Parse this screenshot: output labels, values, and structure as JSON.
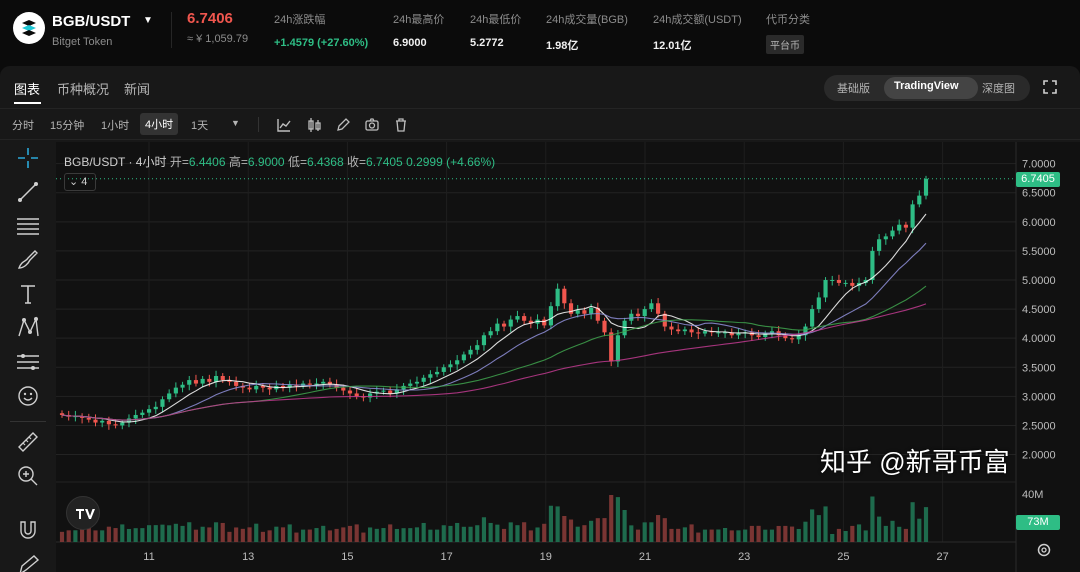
{
  "header": {
    "pair": "BGB/USDT",
    "coin_name": "Bitget Token",
    "last_price": "6.7406",
    "fiat_price": "≈ ¥ 1,059.79",
    "stats": [
      {
        "label": "24h涨跌幅",
        "value": "+1.4579 (+27.60%)",
        "up": true
      },
      {
        "label": "24h最高价",
        "value": "6.9000"
      },
      {
        "label": "24h最低价",
        "value": "5.2772"
      },
      {
        "label": "24h成交量(BGB)",
        "value": "1.98亿"
      },
      {
        "label": "24h成交额(USDT)",
        "value": "12.01亿"
      },
      {
        "label": "代币分类",
        "tag": "平台币"
      }
    ]
  },
  "tabs": {
    "chart": "图表",
    "overview": "币种概况",
    "news": "新闻"
  },
  "views": {
    "basic": "基础版",
    "tradingview": "TradingView",
    "depth": "深度图"
  },
  "timeframes": {
    "time": "分时",
    "m15": "15分钟",
    "h1": "1小时",
    "h4": "4小时",
    "d1": "1天",
    "caret": "▼"
  },
  "legend": {
    "symbol": "BGB/USDT · 4小时",
    "open_lbl": "开=",
    "open": "6.4406",
    "high_lbl": "高=",
    "high": "6.9000",
    "low_lbl": "低=",
    "low": "6.4368",
    "close_lbl": "收=",
    "close": "6.7405",
    "change": "0.2999 (+4.66%)",
    "indicator_count": "4"
  },
  "current_price_label": "6.7405",
  "volume_label": "73M",
  "watermark": "知乎 @新哥币富",
  "colors": {
    "up": "#2ebd85",
    "down": "#f0564e",
    "ma7": "#ffffff",
    "ma14": "#8f8fd9",
    "ma30": "#3fa34d",
    "ma60": "#c03b8f"
  },
  "chart_data": {
    "type": "candlestick",
    "symbol": "BGB/USDT",
    "interval": "4小时",
    "y_ticks": [
      "7.0000",
      "6.5000",
      "6.0000",
      "5.5000",
      "5.0000",
      "4.5000",
      "4.0000",
      "3.5000",
      "3.0000",
      "2.5000",
      "2.0000"
    ],
    "ylim": [
      1.7,
      7.2
    ],
    "x_ticks": [
      "11",
      "13",
      "15",
      "17",
      "19",
      "21",
      "23",
      "25",
      "27"
    ],
    "volume_ticks": [
      "40M"
    ],
    "closes": [
      2.68,
      2.65,
      2.66,
      2.63,
      2.6,
      2.55,
      2.58,
      2.52,
      2.5,
      2.55,
      2.62,
      2.68,
      2.72,
      2.78,
      2.82,
      2.95,
      3.05,
      3.15,
      3.2,
      3.28,
      3.22,
      3.3,
      3.25,
      3.35,
      3.28,
      3.25,
      3.18,
      3.15,
      3.12,
      3.18,
      3.15,
      3.12,
      3.18,
      3.15,
      3.2,
      3.18,
      3.22,
      3.2,
      3.22,
      3.25,
      3.2,
      3.15,
      3.1,
      3.05,
      3.0,
      2.98,
      3.05,
      3.08,
      3.1,
      3.05,
      3.12,
      3.18,
      3.22,
      3.25,
      3.32,
      3.38,
      3.42,
      3.5,
      3.55,
      3.62,
      3.72,
      3.8,
      3.88,
      4.05,
      4.12,
      4.25,
      4.2,
      4.32,
      4.38,
      4.3,
      4.25,
      4.32,
      4.22,
      4.55,
      4.85,
      4.6,
      4.42,
      4.48,
      4.42,
      4.52,
      4.3,
      4.1,
      3.6,
      4.05,
      4.3,
      4.42,
      4.38,
      4.5,
      4.6,
      4.42,
      4.2,
      4.15,
      4.12,
      4.15,
      4.1,
      4.08,
      4.12,
      4.1,
      4.1,
      4.1,
      4.05,
      4.08,
      4.1,
      4.05,
      4.02,
      4.08,
      4.12,
      4.05,
      4.0,
      3.98,
      4.05,
      4.2,
      4.5,
      4.7,
      5.0,
      5.0,
      4.95,
      4.95,
      4.9,
      4.95,
      5.0,
      5.5,
      5.7,
      5.75,
      5.85,
      5.95,
      5.9,
      6.3,
      6.45,
      6.74
    ],
    "ma_periods": [
      7,
      14,
      30,
      60
    ]
  }
}
